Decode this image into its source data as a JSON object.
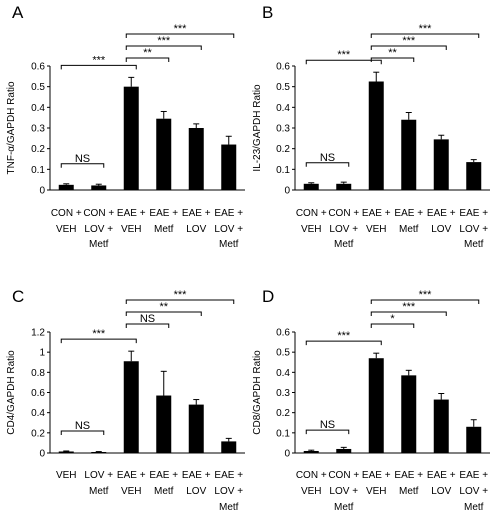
{
  "chart_data": [
    {
      "type": "bar",
      "panel_label": "A",
      "ylabel": "TNF-α/GAPDH Ratio",
      "ylim": [
        0,
        0.6
      ],
      "yticks": [
        "0",
        "0.1",
        "0.2",
        "0.3",
        "0.4",
        "0.5",
        "0.6"
      ],
      "categories": [
        [
          "CON +",
          "VEH",
          ""
        ],
        [
          "CON +",
          "LOV +",
          "Metf"
        ],
        [
          "EAE +",
          "VEH",
          ""
        ],
        [
          "EAE +",
          "Metf",
          ""
        ],
        [
          "EAE +",
          "LOV",
          ""
        ],
        [
          "EAE +",
          "LOV +",
          "Metf"
        ]
      ],
      "values": [
        0.025,
        0.022,
        0.5,
        0.345,
        0.3,
        0.22
      ],
      "errors": [
        0.005,
        0.006,
        0.045,
        0.035,
        0.02,
        0.04
      ],
      "comparisons": [
        {
          "from": 0,
          "to": 1,
          "label": "NS"
        },
        {
          "from": 0,
          "to": 2,
          "label": "***"
        },
        {
          "from": 2,
          "to": 3,
          "label": "**"
        },
        {
          "from": 2,
          "to": 4,
          "label": "***"
        },
        {
          "from": 2,
          "to": 5,
          "label": "***"
        }
      ]
    },
    {
      "type": "bar",
      "panel_label": "B",
      "ylabel": "IL-23/GAPDH Ratio",
      "ylim": [
        0,
        0.6
      ],
      "yticks": [
        "0",
        "0.1",
        "0.2",
        "0.3",
        "0.4",
        "0.5",
        "0.6"
      ],
      "categories": [
        [
          "CON +",
          "VEH",
          ""
        ],
        [
          "CON +",
          "LOV +",
          "Metf"
        ],
        [
          "EAE +",
          "VEH",
          ""
        ],
        [
          "EAE +",
          "Metf",
          ""
        ],
        [
          "EAE +",
          "LOV",
          ""
        ],
        [
          "EAE +",
          "LOV +",
          "Metf"
        ]
      ],
      "values": [
        0.03,
        0.03,
        0.525,
        0.34,
        0.245,
        0.135
      ],
      "errors": [
        0.005,
        0.008,
        0.045,
        0.035,
        0.02,
        0.012
      ],
      "comparisons": [
        {
          "from": 0,
          "to": 1,
          "label": "NS"
        },
        {
          "from": 0,
          "to": 2,
          "label": "***"
        },
        {
          "from": 2,
          "to": 3,
          "label": "**"
        },
        {
          "from": 2,
          "to": 4,
          "label": "***"
        },
        {
          "from": 2,
          "to": 5,
          "label": "***"
        }
      ]
    },
    {
      "type": "bar",
      "panel_label": "C",
      "ylabel": "CD4/GAPDH Ratio",
      "ylim": [
        0,
        1.2
      ],
      "yticks": [
        "0",
        "0.2",
        "0.4",
        "0.6",
        "0.8",
        "1",
        "1.2"
      ],
      "categories": [
        [
          "VEH",
          ""
        ],
        [
          "LOV +",
          "Metf"
        ],
        [
          "EAE +",
          "VEH"
        ],
        [
          "EAE +",
          "Metf"
        ],
        [
          "EAE +",
          "LOV"
        ],
        [
          "EAE +",
          "LOV +",
          "Metf"
        ]
      ],
      "values": [
        0.015,
        0.01,
        0.91,
        0.57,
        0.48,
        0.115
      ],
      "errors": [
        0.005,
        0.004,
        0.1,
        0.24,
        0.05,
        0.03
      ],
      "comparisons": [
        {
          "from": 0,
          "to": 1,
          "label": "NS"
        },
        {
          "from": 0,
          "to": 2,
          "label": "***"
        },
        {
          "from": 2,
          "to": 3,
          "label": "NS"
        },
        {
          "from": 2,
          "to": 4,
          "label": "**"
        },
        {
          "from": 2,
          "to": 5,
          "label": "***"
        }
      ]
    },
    {
      "type": "bar",
      "panel_label": "D",
      "ylabel": "CD8/GAPDH Ratio",
      "ylim": [
        0,
        0.6
      ],
      "yticks": [
        "0",
        "0.1",
        "0.2",
        "0.3",
        "0.4",
        "0.5",
        "0.6"
      ],
      "categories": [
        [
          "CON +",
          "VEH",
          ""
        ],
        [
          "CON +",
          "LOV +",
          "Metf"
        ],
        [
          "EAE +",
          "VEH",
          ""
        ],
        [
          "EAE +",
          "Metf",
          ""
        ],
        [
          "EAE +",
          "LOV",
          ""
        ],
        [
          "EAE +",
          "LOV +",
          "Metf"
        ]
      ],
      "values": [
        0.01,
        0.02,
        0.47,
        0.385,
        0.265,
        0.13
      ],
      "errors": [
        0.004,
        0.008,
        0.025,
        0.025,
        0.03,
        0.035
      ],
      "comparisons": [
        {
          "from": 0,
          "to": 1,
          "label": "NS"
        },
        {
          "from": 0,
          "to": 2,
          "label": "***"
        },
        {
          "from": 2,
          "to": 3,
          "label": "*"
        },
        {
          "from": 2,
          "to": 4,
          "label": "***"
        },
        {
          "from": 2,
          "to": 5,
          "label": "***"
        }
      ]
    }
  ]
}
